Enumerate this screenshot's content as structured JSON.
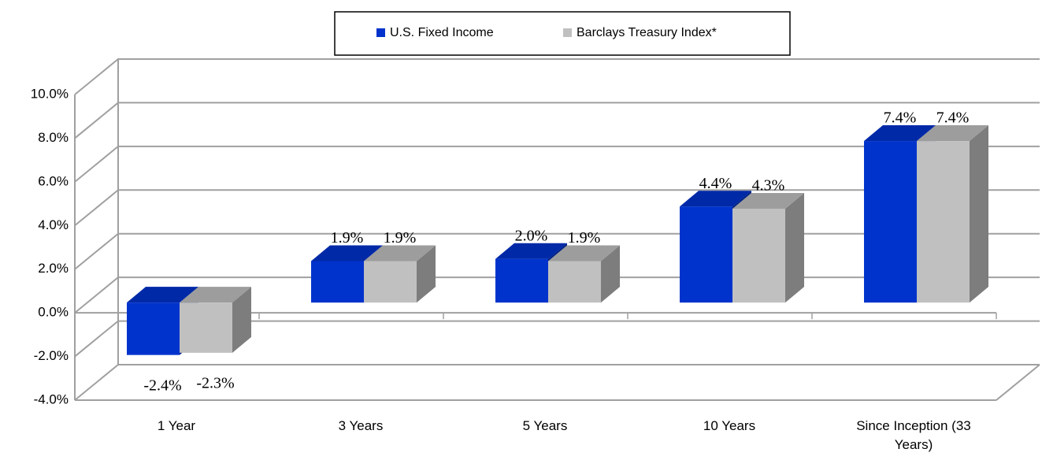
{
  "chart_data": {
    "type": "bar3d",
    "categories": [
      "1 Year",
      "3 Years",
      "5 Years",
      "10 Years",
      "Since Inception (33 Years)"
    ],
    "series": [
      {
        "name": "U.S. Fixed Income",
        "color": "#0033cc",
        "values": [
          -2.4,
          1.9,
          2.0,
          4.4,
          7.4
        ],
        "value_labels": [
          "-2.4%",
          "1.9%",
          "2.0%",
          "4.4%",
          "7.4%"
        ]
      },
      {
        "name": "Barclays Treasury Index*",
        "color": "#c0c0c0",
        "values": [
          -2.3,
          1.9,
          1.9,
          4.3,
          7.4
        ],
        "value_labels": [
          "-2.3%",
          "1.9%",
          "1.9%",
          "4.3%",
          "7.4%"
        ]
      }
    ],
    "ylim": [
      -4,
      10
    ],
    "yticks": [
      {
        "value": -4,
        "label": "-4.0%"
      },
      {
        "value": -2,
        "label": "-2.0%"
      },
      {
        "value": 0,
        "label": "0.0%"
      },
      {
        "value": 2,
        "label": "2.0%"
      },
      {
        "value": 4,
        "label": "4.0%"
      },
      {
        "value": 6,
        "label": "6.0%"
      },
      {
        "value": 8,
        "label": "8.0%"
      },
      {
        "value": 10,
        "label": "10.0%"
      }
    ],
    "grid": true,
    "legend": "top"
  }
}
